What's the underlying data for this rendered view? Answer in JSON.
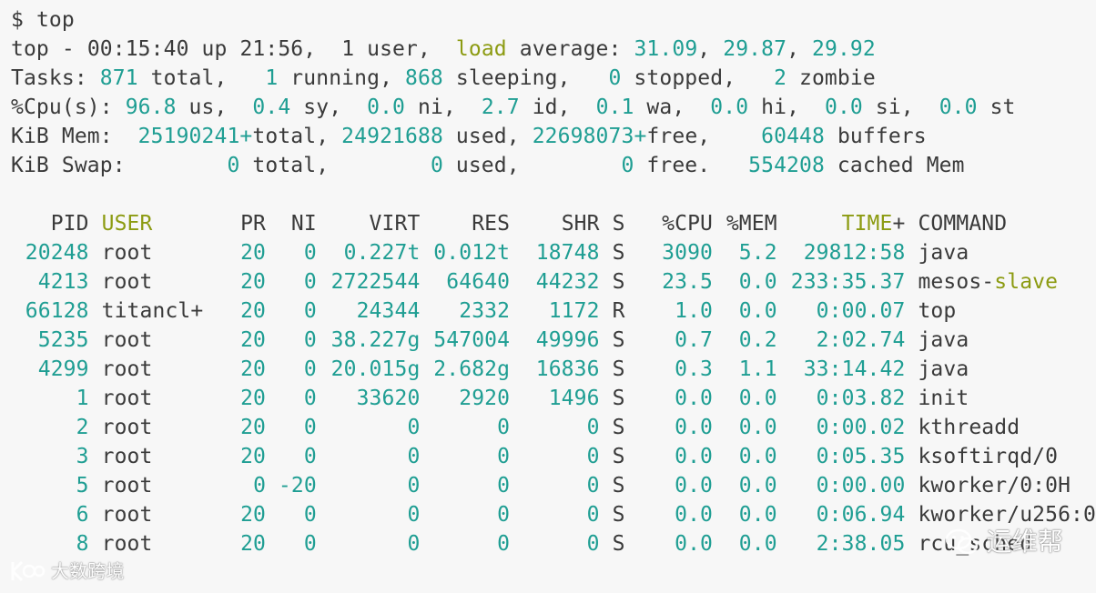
{
  "prompt": {
    "symbol": "$",
    "command": "top"
  },
  "summary": {
    "time": "00:15:40",
    "uptime": "21:56",
    "users": "1",
    "load_word": "load",
    "load_avg": [
      "31.09",
      "29.87",
      "29.92"
    ],
    "tasks": {
      "total": "871",
      "running": "1",
      "sleeping": "868",
      "stopped": "0",
      "zombie": "2"
    },
    "cpu": {
      "us": "96.8",
      "sy": "0.4",
      "ni": "0.0",
      "id": "2.7",
      "wa": "0.1",
      "hi": "0.0",
      "si": "0.0",
      "st": "0.0"
    },
    "mem": {
      "total": "25190241+",
      "used": "24921688",
      "free": "22698073+",
      "buffers": "60448"
    },
    "swap": {
      "total": "0",
      "used": "0",
      "free": "0",
      "cached": "554208"
    }
  },
  "columns": [
    "PID",
    "USER",
    "PR",
    "NI",
    "VIRT",
    "RES",
    "SHR",
    "S",
    "%CPU",
    "%MEM",
    "TIME+",
    "COMMAND"
  ],
  "processes": [
    {
      "pid": "20248",
      "user": "root",
      "pr": "20",
      "ni": "0",
      "virt": "0.227t",
      "res": "0.012t",
      "shr": "18748",
      "s": "S",
      "cpu": "3090",
      "mem": "5.2",
      "time": "29812:58",
      "cmd": "java"
    },
    {
      "pid": "4213",
      "user": "root",
      "pr": "20",
      "ni": "0",
      "virt": "2722544",
      "res": "64640",
      "shr": "44232",
      "s": "S",
      "cpu": "23.5",
      "mem": "0.0",
      "time": "233:35.37",
      "cmd": "mesos-",
      "cmd_hl": "slave"
    },
    {
      "pid": "66128",
      "user": "titancl+",
      "pr": "20",
      "ni": "0",
      "virt": "24344",
      "res": "2332",
      "shr": "1172",
      "s": "R",
      "cpu": "1.0",
      "mem": "0.0",
      "time": "0:00.07",
      "cmd": "top"
    },
    {
      "pid": "5235",
      "user": "root",
      "pr": "20",
      "ni": "0",
      "virt": "38.227g",
      "res": "547004",
      "shr": "49996",
      "s": "S",
      "cpu": "0.7",
      "mem": "0.2",
      "time": "2:02.74",
      "cmd": "java"
    },
    {
      "pid": "4299",
      "user": "root",
      "pr": "20",
      "ni": "0",
      "virt": "20.015g",
      "res": "2.682g",
      "shr": "16836",
      "s": "S",
      "cpu": "0.3",
      "mem": "1.1",
      "time": "33:14.42",
      "cmd": "java"
    },
    {
      "pid": "1",
      "user": "root",
      "pr": "20",
      "ni": "0",
      "virt": "33620",
      "res": "2920",
      "shr": "1496",
      "s": "S",
      "cpu": "0.0",
      "mem": "0.0",
      "time": "0:03.82",
      "cmd": "init"
    },
    {
      "pid": "2",
      "user": "root",
      "pr": "20",
      "ni": "0",
      "virt": "0",
      "res": "0",
      "shr": "0",
      "s": "S",
      "cpu": "0.0",
      "mem": "0.0",
      "time": "0:00.02",
      "cmd": "kthreadd"
    },
    {
      "pid": "3",
      "user": "root",
      "pr": "20",
      "ni": "0",
      "virt": "0",
      "res": "0",
      "shr": "0",
      "s": "S",
      "cpu": "0.0",
      "mem": "0.0",
      "time": "0:05.35",
      "cmd": "ksoftirqd/0"
    },
    {
      "pid": "5",
      "user": "root",
      "pr": "0",
      "ni": "-20",
      "virt": "0",
      "res": "0",
      "shr": "0",
      "s": "S",
      "cpu": "0.0",
      "mem": "0.0",
      "time": "0:00.00",
      "cmd": "kworker/0:0H"
    },
    {
      "pid": "6",
      "user": "root",
      "pr": "20",
      "ni": "0",
      "virt": "0",
      "res": "0",
      "shr": "0",
      "s": "S",
      "cpu": "0.0",
      "mem": "0.0",
      "time": "0:06.94",
      "cmd": "kworker/u256:0"
    },
    {
      "pid": "8",
      "user": "root",
      "pr": "20",
      "ni": "0",
      "virt": "0",
      "res": "0",
      "shr": "0",
      "s": "S",
      "cpu": "0.0",
      "mem": "0.0",
      "time": "2:38.05",
      "cmd": "rcu_sched"
    }
  ],
  "watermarks": {
    "left": "大数跨境",
    "left_logo": "K",
    "right": "运维帮"
  },
  "colors": {
    "number": "#1f9e93",
    "highlight": "#8c9b12",
    "text": "#3a3a3a",
    "background": "#f7f7f7"
  }
}
